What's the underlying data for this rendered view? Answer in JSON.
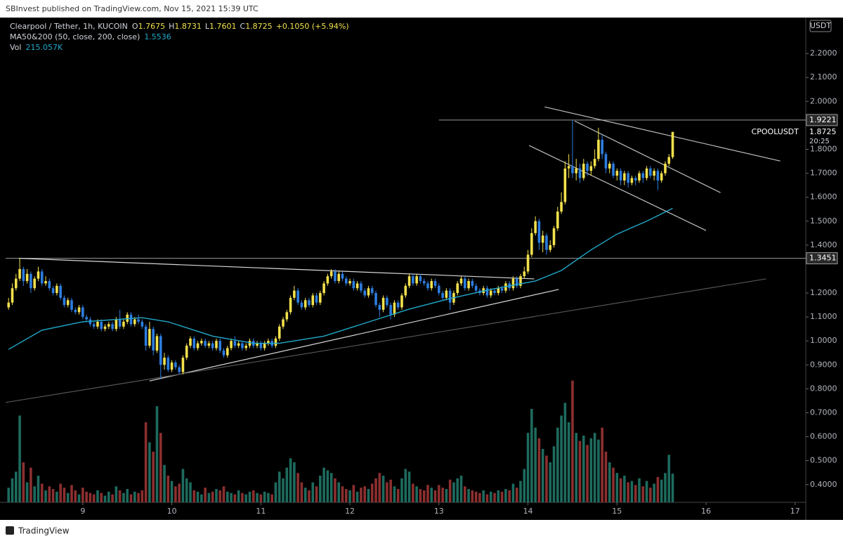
{
  "header": {
    "publisher": "SBInvest published on TradingView.com, Nov 15, 2021 15:39 UTC",
    "footer": "TradingView"
  },
  "chart_data": {
    "type": "candlestick",
    "symbol": "Clearpool / Tether, 1h, KUCOIN",
    "ohlc_labels": [
      "O",
      "H",
      "L",
      "C"
    ],
    "change": "+0.1050 (+5.94%)",
    "ma_label": "MA50&200 (50, close, 200, close)",
    "vol_label": "Vol",
    "vol_value": "215.057K",
    "currency": "USDT",
    "ticker": "CPOOLUSDT",
    "countdown": "20:25",
    "up_color": "#f2e14c",
    "down_color": "#2d7de0",
    "vol_up_color": "#1d6b5e",
    "vol_down_color": "#8c2f2f",
    "ma_color": "#22a9c9",
    "xlim": [
      -0.8,
      214.5
    ],
    "ylim": [
      0.326,
      2.35
    ],
    "volume_lim": [
      0,
      3630
    ],
    "grid": false,
    "xticks": [
      {
        "value": 20,
        "label": "9"
      },
      {
        "value": 44,
        "label": "10"
      },
      {
        "value": 68,
        "label": "11"
      },
      {
        "value": 92,
        "label": "12"
      },
      {
        "value": 116,
        "label": "13"
      },
      {
        "value": 140,
        "label": "14"
      },
      {
        "value": 164,
        "label": "15"
      },
      {
        "value": 188,
        "label": "16"
      },
      {
        "value": 212,
        "label": "17"
      }
    ],
    "yticks": [
      {
        "value": 0.4,
        "label": "0.4000"
      },
      {
        "value": 0.5,
        "label": "0.5000"
      },
      {
        "value": 0.6,
        "label": "0.6000"
      },
      {
        "value": 0.7,
        "label": "0.7000"
      },
      {
        "value": 0.8,
        "label": "0.8000"
      },
      {
        "value": 0.9,
        "label": "0.9000"
      },
      {
        "value": 1.0,
        "label": "1.0000"
      },
      {
        "value": 1.1,
        "label": "1.1000"
      },
      {
        "value": 1.2,
        "label": "1.2000"
      },
      {
        "value": 1.4,
        "label": "1.4000"
      },
      {
        "value": 1.5,
        "label": "1.5000"
      },
      {
        "value": 1.6,
        "label": "1.6000"
      },
      {
        "value": 1.7,
        "label": "1.7000"
      },
      {
        "value": 1.8,
        "label": "1.8000"
      },
      {
        "value": 2.0,
        "label": "2.0000"
      },
      {
        "value": 2.1,
        "label": "2.1000"
      },
      {
        "value": 2.2,
        "label": "2.2000"
      }
    ],
    "candles": [
      [
        1.14,
        1.18,
        1.13,
        1.16
      ],
      [
        1.16,
        1.24,
        1.15,
        1.22
      ],
      [
        1.22,
        1.28,
        1.21,
        1.26
      ],
      [
        1.26,
        1.345,
        1.25,
        1.3
      ],
      [
        1.3,
        1.31,
        1.23,
        1.25
      ],
      [
        1.25,
        1.3,
        1.24,
        1.28
      ],
      [
        1.28,
        1.29,
        1.2,
        1.22
      ],
      [
        1.22,
        1.27,
        1.21,
        1.26
      ],
      [
        1.26,
        1.31,
        1.25,
        1.29
      ],
      [
        1.29,
        1.3,
        1.23,
        1.24
      ],
      [
        1.24,
        1.27,
        1.23,
        1.25
      ],
      [
        1.25,
        1.26,
        1.21,
        1.22
      ],
      [
        1.22,
        1.23,
        1.19,
        1.2
      ],
      [
        1.2,
        1.24,
        1.19,
        1.23
      ],
      [
        1.23,
        1.24,
        1.17,
        1.18
      ],
      [
        1.18,
        1.19,
        1.14,
        1.15
      ],
      [
        1.15,
        1.18,
        1.14,
        1.17
      ],
      [
        1.17,
        1.18,
        1.12,
        1.13
      ],
      [
        1.13,
        1.14,
        1.11,
        1.12
      ],
      [
        1.12,
        1.15,
        1.11,
        1.14
      ],
      [
        1.14,
        1.15,
        1.09,
        1.1
      ],
      [
        1.1,
        1.11,
        1.08,
        1.09
      ],
      [
        1.09,
        1.1,
        1.06,
        1.07
      ],
      [
        1.07,
        1.08,
        1.05,
        1.06
      ],
      [
        1.06,
        1.09,
        1.05,
        1.08
      ],
      [
        1.08,
        1.09,
        1.04,
        1.05
      ],
      [
        1.05,
        1.07,
        1.04,
        1.06
      ],
      [
        1.06,
        1.08,
        1.05,
        1.07
      ],
      [
        1.07,
        1.08,
        1.04,
        1.05
      ],
      [
        1.05,
        1.1,
        1.04,
        1.09
      ],
      [
        1.09,
        1.13,
        1.05,
        1.06
      ],
      [
        1.06,
        1.09,
        1.05,
        1.08
      ],
      [
        1.08,
        1.12,
        1.07,
        1.11
      ],
      [
        1.11,
        1.12,
        1.06,
        1.07
      ],
      [
        1.07,
        1.1,
        1.06,
        1.09
      ],
      [
        1.09,
        1.11,
        1.07,
        1.08
      ],
      [
        1.08,
        1.09,
        1.05,
        1.06
      ],
      [
        1.06,
        1.07,
        0.96,
        0.98
      ],
      [
        0.98,
        1.08,
        0.97,
        1.05
      ],
      [
        1.05,
        1.06,
        0.94,
        0.96
      ],
      [
        0.96,
        1.03,
        0.95,
        1.02
      ],
      [
        1.02,
        1.03,
        0.84,
        0.9
      ],
      [
        0.9,
        0.95,
        0.88,
        0.93
      ],
      [
        0.93,
        0.94,
        0.87,
        0.88
      ],
      [
        0.88,
        0.92,
        0.87,
        0.91
      ],
      [
        0.91,
        0.92,
        0.88,
        0.89
      ],
      [
        0.89,
        0.9,
        0.86,
        0.87
      ],
      [
        0.87,
        0.94,
        0.86,
        0.93
      ],
      [
        0.93,
        0.99,
        0.92,
        0.98
      ],
      [
        0.98,
        1.02,
        0.97,
        1.01
      ],
      [
        1.01,
        1.02,
        0.96,
        0.97
      ],
      [
        0.97,
        1.0,
        0.96,
        0.99
      ],
      [
        0.99,
        1.01,
        0.98,
        1.0
      ],
      [
        1.0,
        1.01,
        0.97,
        0.98
      ],
      [
        0.98,
        1.0,
        0.97,
        0.99
      ],
      [
        0.99,
        1.0,
        0.96,
        0.97
      ],
      [
        0.97,
        1.01,
        0.96,
        1.0
      ],
      [
        1.0,
        1.01,
        0.95,
        0.96
      ],
      [
        0.96,
        0.97,
        0.93,
        0.94
      ],
      [
        0.94,
        0.98,
        0.93,
        0.97
      ],
      [
        0.97,
        1.01,
        0.96,
        1.0
      ],
      [
        1.0,
        1.02,
        0.97,
        0.98
      ],
      [
        0.98,
        1.0,
        0.97,
        0.99
      ],
      [
        0.99,
        1.0,
        0.96,
        0.97
      ],
      [
        0.97,
        0.99,
        0.96,
        0.98
      ],
      [
        0.98,
        1.01,
        0.97,
        1.0
      ],
      [
        1.0,
        1.01,
        0.97,
        0.98
      ],
      [
        0.98,
        1.0,
        0.97,
        0.99
      ],
      [
        0.99,
        1.0,
        0.96,
        0.97
      ],
      [
        0.97,
        1.0,
        0.96,
        0.99
      ],
      [
        0.99,
        1.01,
        0.98,
        1.0
      ],
      [
        1.0,
        1.01,
        0.97,
        0.98
      ],
      [
        0.98,
        1.02,
        0.97,
        1.01
      ],
      [
        1.01,
        1.07,
        1.0,
        1.06
      ],
      [
        1.06,
        1.1,
        1.05,
        1.09
      ],
      [
        1.09,
        1.13,
        1.08,
        1.12
      ],
      [
        1.12,
        1.19,
        1.11,
        1.18
      ],
      [
        1.18,
        1.23,
        1.17,
        1.21
      ],
      [
        1.21,
        1.22,
        1.15,
        1.16
      ],
      [
        1.16,
        1.17,
        1.13,
        1.14
      ],
      [
        1.14,
        1.18,
        1.13,
        1.17
      ],
      [
        1.17,
        1.18,
        1.14,
        1.15
      ],
      [
        1.15,
        1.2,
        1.14,
        1.19
      ],
      [
        1.19,
        1.2,
        1.15,
        1.16
      ],
      [
        1.16,
        1.21,
        1.15,
        1.2
      ],
      [
        1.2,
        1.25,
        1.19,
        1.24
      ],
      [
        1.24,
        1.28,
        1.23,
        1.27
      ],
      [
        1.27,
        1.3,
        1.26,
        1.29
      ],
      [
        1.29,
        1.3,
        1.24,
        1.25
      ],
      [
        1.25,
        1.29,
        1.24,
        1.28
      ],
      [
        1.28,
        1.29,
        1.25,
        1.26
      ],
      [
        1.26,
        1.27,
        1.23,
        1.24
      ],
      [
        1.24,
        1.26,
        1.23,
        1.25
      ],
      [
        1.25,
        1.26,
        1.21,
        1.22
      ],
      [
        1.22,
        1.25,
        1.21,
        1.24
      ],
      [
        1.24,
        1.25,
        1.2,
        1.21
      ],
      [
        1.21,
        1.22,
        1.18,
        1.19
      ],
      [
        1.19,
        1.23,
        1.18,
        1.22
      ],
      [
        1.22,
        1.23,
        1.19,
        1.2
      ],
      [
        1.2,
        1.21,
        1.14,
        1.15
      ],
      [
        1.15,
        1.16,
        1.1,
        1.13
      ],
      [
        1.13,
        1.19,
        1.12,
        1.18
      ],
      [
        1.18,
        1.19,
        1.14,
        1.15
      ],
      [
        1.15,
        1.16,
        1.09,
        1.11
      ],
      [
        1.11,
        1.17,
        1.1,
        1.16
      ],
      [
        1.16,
        1.17,
        1.13,
        1.14
      ],
      [
        1.14,
        1.2,
        1.13,
        1.19
      ],
      [
        1.19,
        1.24,
        1.18,
        1.23
      ],
      [
        1.23,
        1.28,
        1.22,
        1.27
      ],
      [
        1.27,
        1.28,
        1.23,
        1.24
      ],
      [
        1.24,
        1.28,
        1.23,
        1.27
      ],
      [
        1.27,
        1.28,
        1.24,
        1.25
      ],
      [
        1.25,
        1.26,
        1.23,
        1.24
      ],
      [
        1.24,
        1.25,
        1.21,
        1.22
      ],
      [
        1.22,
        1.26,
        1.21,
        1.25
      ],
      [
        1.25,
        1.26,
        1.22,
        1.23
      ],
      [
        1.23,
        1.24,
        1.19,
        1.2
      ],
      [
        1.2,
        1.21,
        1.17,
        1.18
      ],
      [
        1.18,
        1.22,
        1.17,
        1.21
      ],
      [
        1.21,
        1.22,
        1.13,
        1.16
      ],
      [
        1.16,
        1.21,
        1.15,
        1.2
      ],
      [
        1.2,
        1.25,
        1.19,
        1.24
      ],
      [
        1.24,
        1.27,
        1.23,
        1.26
      ],
      [
        1.26,
        1.27,
        1.21,
        1.22
      ],
      [
        1.22,
        1.26,
        1.21,
        1.25
      ],
      [
        1.25,
        1.26,
        1.22,
        1.23
      ],
      [
        1.23,
        1.24,
        1.2,
        1.21
      ],
      [
        1.21,
        1.22,
        1.19,
        1.2
      ],
      [
        1.2,
        1.23,
        1.19,
        1.22
      ],
      [
        1.22,
        1.23,
        1.18,
        1.19
      ],
      [
        1.19,
        1.22,
        1.18,
        1.21
      ],
      [
        1.21,
        1.22,
        1.19,
        1.2
      ],
      [
        1.2,
        1.23,
        1.19,
        1.22
      ],
      [
        1.22,
        1.23,
        1.2,
        1.21
      ],
      [
        1.21,
        1.25,
        1.2,
        1.24
      ],
      [
        1.24,
        1.25,
        1.21,
        1.22
      ],
      [
        1.22,
        1.27,
        1.21,
        1.26
      ],
      [
        1.26,
        1.27,
        1.22,
        1.23
      ],
      [
        1.23,
        1.28,
        1.22,
        1.27
      ],
      [
        1.27,
        1.31,
        1.26,
        1.29
      ],
      [
        1.29,
        1.38,
        1.28,
        1.36
      ],
      [
        1.36,
        1.47,
        1.35,
        1.45
      ],
      [
        1.45,
        1.52,
        1.44,
        1.5
      ],
      [
        1.5,
        1.51,
        1.38,
        1.41
      ],
      [
        1.41,
        1.46,
        1.37,
        1.44
      ],
      [
        1.44,
        1.45,
        1.36,
        1.38
      ],
      [
        1.38,
        1.42,
        1.37,
        1.4
      ],
      [
        1.4,
        1.48,
        1.39,
        1.47
      ],
      [
        1.47,
        1.56,
        1.46,
        1.54
      ],
      [
        1.54,
        1.62,
        1.53,
        1.58
      ],
      [
        1.58,
        1.75,
        1.57,
        1.72
      ],
      [
        1.72,
        1.78,
        1.68,
        1.73
      ],
      [
        1.73,
        1.922,
        1.68,
        1.7
      ],
      [
        1.7,
        1.76,
        1.67,
        1.72
      ],
      [
        1.72,
        1.74,
        1.66,
        1.68
      ],
      [
        1.68,
        1.76,
        1.67,
        1.74
      ],
      [
        1.74,
        1.75,
        1.69,
        1.71
      ],
      [
        1.71,
        1.75,
        1.69,
        1.73
      ],
      [
        1.73,
        1.8,
        1.72,
        1.76
      ],
      [
        1.76,
        1.89,
        1.75,
        1.84
      ],
      [
        1.84,
        1.86,
        1.76,
        1.78
      ],
      [
        1.78,
        1.79,
        1.7,
        1.72
      ],
      [
        1.72,
        1.75,
        1.7,
        1.74
      ],
      [
        1.74,
        1.75,
        1.68,
        1.69
      ],
      [
        1.69,
        1.72,
        1.67,
        1.71
      ],
      [
        1.71,
        1.72,
        1.65,
        1.67
      ],
      [
        1.67,
        1.71,
        1.65,
        1.7
      ],
      [
        1.7,
        1.71,
        1.64,
        1.66
      ],
      [
        1.66,
        1.69,
        1.65,
        1.68
      ],
      [
        1.68,
        1.69,
        1.65,
        1.67
      ],
      [
        1.67,
        1.71,
        1.66,
        1.7
      ],
      [
        1.7,
        1.71,
        1.66,
        1.68
      ],
      [
        1.68,
        1.73,
        1.67,
        1.72
      ],
      [
        1.72,
        1.73,
        1.68,
        1.69
      ],
      [
        1.69,
        1.72,
        1.67,
        1.71
      ],
      [
        1.71,
        1.72,
        1.63,
        1.67
      ],
      [
        1.67,
        1.71,
        1.66,
        1.7
      ],
      [
        1.7,
        1.75,
        1.69,
        1.74
      ],
      [
        1.74,
        1.78,
        1.73,
        1.7675
      ],
      [
        1.7675,
        1.8731,
        1.7601,
        1.8725
      ]
    ],
    "volume": [
      110,
      180,
      230,
      650,
      300,
      150,
      260,
      120,
      200,
      140,
      90,
      120,
      100,
      80,
      140,
      110,
      70,
      130,
      90,
      60,
      110,
      80,
      70,
      60,
      90,
      70,
      50,
      80,
      60,
      120,
      90,
      70,
      100,
      60,
      80,
      70,
      90,
      600,
      450,
      380,
      720,
      520,
      280,
      200,
      160,
      120,
      140,
      250,
      180,
      150,
      90,
      80,
      60,
      110,
      70,
      80,
      100,
      90,
      120,
      80,
      70,
      60,
      90,
      70,
      60,
      80,
      90,
      70,
      60,
      80,
      70,
      60,
      150,
      230,
      180,
      260,
      330,
      300,
      220,
      150,
      110,
      90,
      150,
      120,
      200,
      260,
      240,
      220,
      180,
      150,
      120,
      100,
      90,
      130,
      80,
      110,
      120,
      100,
      140,
      180,
      220,
      200,
      150,
      170,
      120,
      100,
      180,
      250,
      230,
      140,
      120,
      100,
      90,
      130,
      110,
      90,
      130,
      110,
      100,
      170,
      150,
      180,
      200,
      120,
      100,
      90,
      80,
      70,
      90,
      60,
      80,
      70,
      90,
      80,
      100,
      90,
      140,
      110,
      160,
      250,
      520,
      700,
      560,
      480,
      400,
      350,
      300,
      420,
      560,
      650,
      745,
      600,
      912,
      520,
      460,
      500,
      430,
      480,
      520,
      470,
      560,
      380,
      300,
      260,
      220,
      180,
      200,
      150,
      160,
      130,
      180,
      120,
      160,
      110,
      140,
      190,
      170,
      220,
      356,
      215.057
    ],
    "ma": {
      "x": [
        0,
        9,
        20,
        36,
        43,
        55,
        66,
        73,
        85,
        96,
        108,
        119,
        130,
        142,
        149,
        157,
        164,
        172,
        179
      ],
      "values": [
        0.965,
        1.045,
        1.08,
        1.097,
        1.08,
        1.02,
        0.99,
        0.99,
        1.02,
        1.074,
        1.133,
        1.177,
        1.215,
        1.25,
        1.294,
        1.38,
        1.446,
        1.5,
        1.5536
      ]
    },
    "levels": [
      {
        "price": 1.9221,
        "start": 116
      },
      {
        "price": 1.3451,
        "start": -0.8
      }
    ],
    "drawings": [
      {
        "from": [
          2.8,
          1.345
        ],
        "to": [
          141.7,
          1.259
        ],
        "color": "#d8d8d8"
      },
      {
        "from": [
          38,
          0.833
        ],
        "to": [
          148.3,
          1.215
        ],
        "color": "#d8d8d8"
      },
      {
        "from": [
          -0.8,
          0.743
        ],
        "to": [
          204.2,
          1.259
        ],
        "color": "#555555"
      },
      {
        "from": [
          144.5,
          1.977
        ],
        "to": [
          208,
          1.751
        ],
        "color": "#bdbdbd"
      },
      {
        "from": [
          152.6,
          1.918
        ],
        "to": [
          191.9,
          1.619
        ],
        "color": "#bdbdbd"
      },
      {
        "from": [
          140.3,
          1.816
        ],
        "to": [
          188,
          1.461
        ],
        "color": "#bdbdbd"
      }
    ]
  }
}
